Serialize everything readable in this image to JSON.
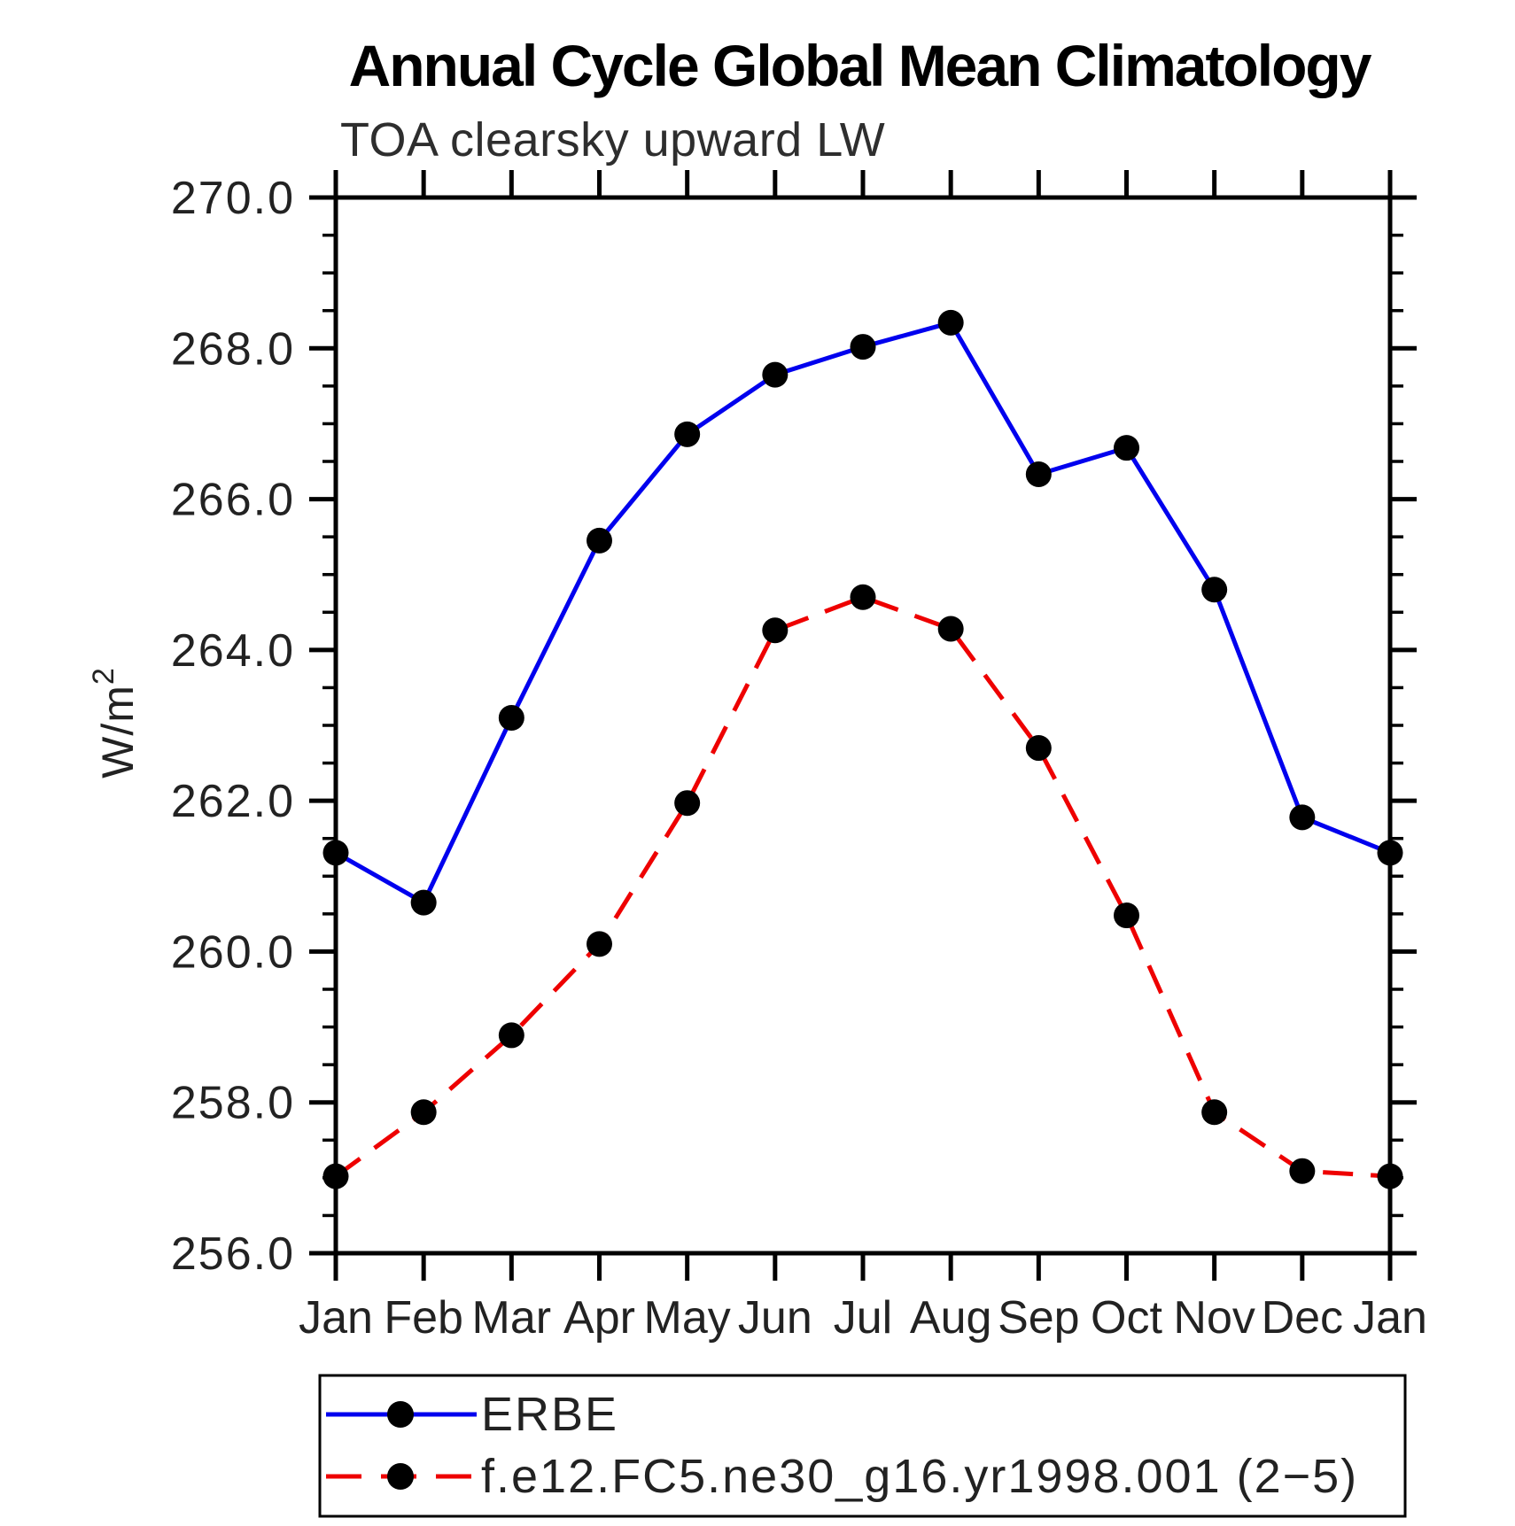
{
  "title": "Annual Cycle Global Mean Climatology",
  "subtitle": "TOA clearsky upward LW",
  "ylabel_base": "W/m",
  "ylabel_sup": "2",
  "chart_data": {
    "type": "line",
    "categories": [
      "Jan",
      "Feb",
      "Mar",
      "Apr",
      "May",
      "Jun",
      "Jul",
      "Aug",
      "Sep",
      "Oct",
      "Nov",
      "Dec",
      "Jan"
    ],
    "series": [
      {
        "name": "ERBE",
        "color": "#0000ee",
        "line_style": "solid",
        "marker": "circle",
        "values": [
          261.31,
          260.65,
          263.1,
          265.45,
          266.86,
          267.65,
          268.02,
          268.34,
          266.33,
          266.68,
          264.8,
          261.78,
          261.31
        ]
      },
      {
        "name": "f.e12.FC5.ne30_g16.yr1998.001 (2−5)",
        "color": "#ee0000",
        "line_style": "dashed",
        "marker": "circle",
        "values": [
          257.02,
          257.87,
          258.89,
          260.1,
          261.97,
          264.26,
          264.7,
          264.28,
          262.7,
          260.48,
          257.87,
          257.09,
          257.02
        ]
      }
    ],
    "ylim": [
      256.0,
      270.0
    ],
    "ytick_major": 2.0,
    "ytick_minor": 0.5,
    "ytick_labels": [
      "256.0",
      "258.0",
      "260.0",
      "262.0",
      "264.0",
      "266.0",
      "268.0",
      "270.0"
    ],
    "xlabel": "",
    "ylabel": "W/m2",
    "grid": false,
    "legend_position": "bottom-left-box",
    "marker_color": "#000000",
    "axis_color": "#000000"
  }
}
